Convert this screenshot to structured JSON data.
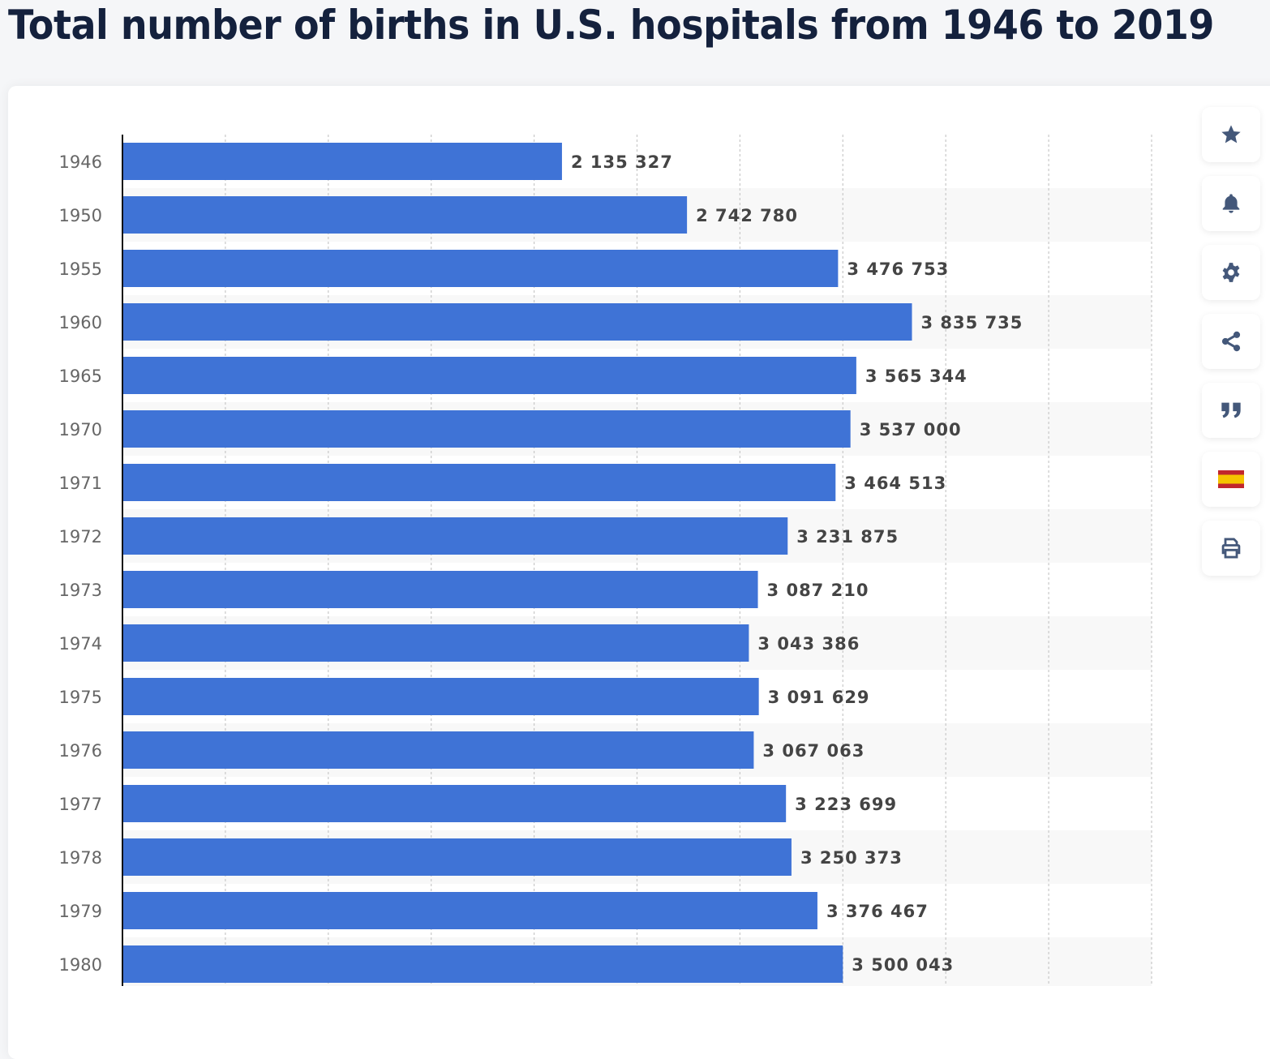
{
  "header": {
    "title": "Total number of births in U.S. hospitals from 1946 to 2019"
  },
  "toolbar": {
    "buttons": [
      {
        "name": "favorite",
        "icon": "star-icon"
      },
      {
        "name": "notification",
        "icon": "bell-icon"
      },
      {
        "name": "settings",
        "icon": "gear-icon"
      },
      {
        "name": "share",
        "icon": "share-icon"
      },
      {
        "name": "cite",
        "icon": "quote-icon"
      },
      {
        "name": "language",
        "icon": "spain-flag-icon"
      },
      {
        "name": "print",
        "icon": "printer-icon"
      }
    ]
  },
  "colors": {
    "bar": "#3f73d6",
    "icon": "#44587a",
    "title": "#14213d"
  },
  "chart_data": {
    "type": "bar",
    "orientation": "horizontal",
    "title": "Total number of births in U.S. hospitals from 1946 to 2019",
    "xlabel": "",
    "ylabel": "",
    "xlim": [
      0,
      5000000
    ],
    "grid": true,
    "categories": [
      "1946",
      "1950",
      "1955",
      "1960",
      "1965",
      "1970",
      "1971",
      "1972",
      "1973",
      "1974",
      "1975",
      "1976",
      "1977",
      "1978",
      "1979",
      "1980"
    ],
    "values": [
      2135327,
      2742780,
      3476753,
      3835735,
      3565344,
      3537000,
      3464513,
      3231875,
      3087210,
      3043386,
      3091629,
      3067063,
      3223699,
      3250373,
      3376467,
      3500043
    ],
    "value_labels": [
      "2 135 327",
      "2 742 780",
      "3 476 753",
      "3 835 735",
      "3 565 344",
      "3 537 000",
      "3 464 513",
      "3 231 875",
      "3 087 210",
      "3 043 386",
      "3 091 629",
      "3 067 063",
      "3 223 699",
      "3 250 373",
      "3 376 467",
      "3 500 043"
    ]
  }
}
